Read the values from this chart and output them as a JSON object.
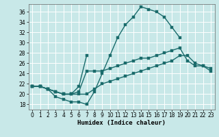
{
  "xlabel": "Humidex (Indice chaleur)",
  "background_color": "#c8e8e8",
  "grid_color": "#ffffff",
  "line_color": "#1a6b6b",
  "xlim": [
    -0.5,
    23.5
  ],
  "ylim": [
    17,
    37.5
  ],
  "yticks": [
    18,
    20,
    22,
    24,
    26,
    28,
    30,
    32,
    34,
    36
  ],
  "xticks": [
    0,
    1,
    2,
    3,
    4,
    5,
    6,
    7,
    8,
    9,
    10,
    11,
    12,
    13,
    14,
    15,
    16,
    17,
    18,
    19,
    20,
    21,
    22,
    23
  ],
  "line1_x": [
    0,
    1,
    2,
    3,
    4,
    5,
    6,
    7,
    8,
    9,
    10,
    11,
    12,
    13,
    14,
    15,
    16,
    17,
    18,
    19
  ],
  "line1_y": [
    21.5,
    21.5,
    21.0,
    19.5,
    19.0,
    18.5,
    18.5,
    18.0,
    20.5,
    24.0,
    27.5,
    31.0,
    33.5,
    35.0,
    37.0,
    36.5,
    36.0,
    35.0,
    33.0,
    31.0
  ],
  "line2_x": [
    0,
    1,
    2,
    3,
    4,
    5,
    6,
    7
  ],
  "line2_y": [
    21.5,
    21.5,
    21.0,
    20.5,
    20.0,
    20.0,
    21.5,
    27.5
  ],
  "line3_x": [
    0,
    1,
    2,
    3,
    4,
    5,
    6,
    7,
    8,
    9,
    10,
    11,
    12,
    13,
    14,
    15,
    16,
    17,
    18,
    19,
    20,
    21,
    22,
    23
  ],
  "line3_y": [
    21.5,
    21.5,
    21.0,
    20.5,
    20.0,
    20.0,
    20.5,
    24.5,
    24.5,
    24.5,
    25.0,
    25.5,
    26.0,
    26.5,
    27.0,
    27.0,
    27.5,
    28.0,
    28.5,
    29.0,
    26.5,
    25.5,
    25.5,
    25.0
  ],
  "line4_x": [
    0,
    1,
    2,
    3,
    4,
    5,
    6,
    7,
    8,
    9,
    10,
    11,
    12,
    13,
    14,
    15,
    16,
    17,
    18,
    19,
    20,
    21,
    22,
    23
  ],
  "line4_y": [
    21.5,
    21.5,
    21.0,
    20.5,
    20.0,
    20.0,
    20.0,
    20.0,
    21.0,
    22.0,
    22.5,
    23.0,
    23.5,
    24.0,
    24.5,
    25.0,
    25.5,
    26.0,
    26.5,
    27.5,
    27.5,
    26.0,
    25.5,
    24.5
  ]
}
